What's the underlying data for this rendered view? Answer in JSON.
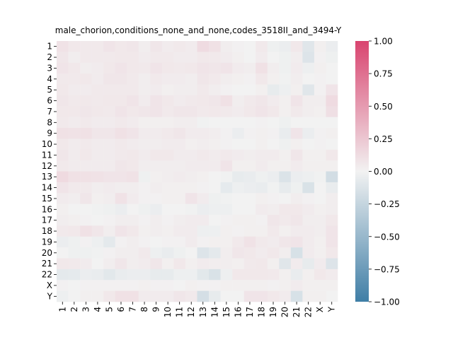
{
  "chart_data": {
    "type": "heatmap",
    "title": "male_chorion,conditions_none_and_none,codes_3518II_and_3494-Y",
    "xlabel": "",
    "ylabel": "",
    "row_labels": [
      "1",
      "2",
      "3",
      "4",
      "5",
      "6",
      "7",
      "8",
      "9",
      "10",
      "11",
      "12",
      "13",
      "14",
      "15",
      "16",
      "17",
      "18",
      "19",
      "20",
      "21",
      "22",
      "X",
      "Y"
    ],
    "col_labels": [
      "1",
      "2",
      "3",
      "4",
      "5",
      "6",
      "7",
      "8",
      "9",
      "10",
      "11",
      "12",
      "13",
      "14",
      "15",
      "16",
      "17",
      "18",
      "19",
      "20",
      "21",
      "22",
      "X",
      "Y"
    ],
    "colorbar": {
      "vmin": -1.0,
      "vmax": 1.0,
      "ticks": [
        "1.00",
        "0.75",
        "0.50",
        "0.25",
        "0.00",
        "−0.25",
        "−0.50",
        "−0.75",
        "−1.00"
      ],
      "low_color": "#3f7ea6",
      "mid_color": "#f2f2f2",
      "high_color": "#d9446f"
    },
    "values": [
      [
        0.09,
        0.06,
        0.05,
        0.05,
        0.08,
        0.06,
        0.07,
        0.03,
        0.07,
        0.04,
        0.05,
        0.04,
        0.13,
        0.1,
        0.03,
        0.01,
        0.0,
        0.05,
        -0.02,
        -0.04,
        0.06,
        -0.1,
        0.02,
        -0.04
      ],
      [
        0.07,
        0.03,
        0.05,
        0.05,
        0.05,
        0.06,
        0.06,
        0.04,
        0.05,
        0.05,
        0.04,
        0.04,
        0.06,
        0.05,
        0.04,
        0.02,
        0.0,
        0.04,
        0.0,
        -0.02,
        0.03,
        -0.12,
        0.01,
        -0.02
      ],
      [
        0.08,
        0.06,
        0.03,
        0.04,
        0.06,
        0.08,
        0.06,
        0.05,
        0.08,
        0.06,
        0.05,
        0.06,
        0.08,
        0.07,
        0.08,
        0.04,
        0.03,
        0.1,
        0.03,
        -0.02,
        0.04,
        -0.03,
        0.02,
        0.0
      ],
      [
        0.05,
        0.05,
        0.06,
        0.04,
        0.07,
        0.07,
        0.05,
        0.03,
        0.05,
        0.04,
        0.04,
        0.03,
        0.07,
        0.05,
        0.03,
        0.02,
        0.01,
        0.06,
        0.02,
        -0.01,
        0.03,
        0.0,
        0.01,
        0.0
      ],
      [
        0.06,
        0.04,
        0.04,
        0.05,
        0.05,
        0.05,
        0.05,
        0.03,
        0.04,
        0.02,
        0.03,
        0.03,
        0.05,
        0.03,
        0.01,
        0.0,
        0.0,
        0.02,
        -0.06,
        -0.03,
        0.02,
        -0.1,
        0.01,
        0.08
      ],
      [
        0.07,
        0.05,
        0.06,
        0.05,
        0.06,
        0.06,
        0.08,
        0.04,
        0.08,
        0.06,
        0.04,
        0.05,
        0.06,
        0.07,
        0.1,
        0.03,
        0.05,
        0.07,
        0.04,
        0.02,
        0.08,
        0.03,
        0.03,
        0.13
      ],
      [
        0.06,
        0.06,
        0.07,
        0.06,
        0.05,
        0.08,
        0.06,
        0.07,
        0.08,
        0.05,
        0.07,
        0.07,
        0.05,
        0.06,
        0.05,
        0.04,
        0.06,
        0.08,
        0.06,
        0.02,
        0.05,
        0.03,
        0.02,
        0.11
      ],
      [
        0.05,
        0.04,
        0.05,
        0.04,
        0.04,
        0.05,
        0.04,
        0.02,
        0.02,
        0.02,
        0.03,
        0.03,
        -0.01,
        0.0,
        0.0,
        0.0,
        0.0,
        0.01,
        0.0,
        -0.02,
        0.0,
        0.0,
        0.0,
        0.0
      ],
      [
        0.1,
        0.09,
        0.1,
        0.07,
        0.07,
        0.1,
        0.08,
        0.04,
        0.04,
        0.05,
        0.07,
        0.04,
        0.04,
        0.03,
        0.01,
        -0.04,
        0.01,
        0.02,
        0.01,
        -0.05,
        0.08,
        -0.04,
        0.01,
        0.02
      ],
      [
        0.06,
        0.04,
        0.05,
        0.04,
        0.04,
        0.05,
        0.04,
        0.03,
        0.03,
        0.04,
        0.04,
        0.02,
        0.03,
        0.02,
        0.01,
        0.0,
        0.0,
        0.02,
        0.0,
        -0.02,
        0.02,
        0.0,
        0.01,
        0.0
      ],
      [
        0.07,
        0.04,
        0.06,
        0.04,
        0.04,
        0.05,
        0.06,
        0.04,
        0.06,
        0.06,
        0.04,
        0.04,
        0.05,
        0.04,
        0.05,
        0.04,
        0.03,
        0.04,
        0.04,
        0.02,
        0.07,
        0.02,
        0.02,
        0.06
      ],
      [
        0.05,
        0.04,
        0.04,
        0.04,
        0.04,
        0.07,
        0.06,
        0.03,
        0.03,
        0.03,
        0.03,
        0.04,
        0.04,
        0.04,
        0.08,
        0.02,
        0.02,
        0.04,
        0.02,
        0.02,
        0.04,
        0.02,
        0.02,
        0.02
      ],
      [
        0.14,
        0.1,
        0.1,
        0.09,
        0.08,
        0.08,
        0.09,
        -0.02,
        0.02,
        0.03,
        0.04,
        0.03,
        0.02,
        0.0,
        -0.01,
        -0.06,
        -0.05,
        -0.02,
        -0.04,
        -0.13,
        -0.04,
        -0.03,
        -0.01,
        -0.18
      ],
      [
        0.08,
        0.05,
        0.05,
        0.03,
        0.04,
        0.03,
        0.03,
        0.01,
        0.03,
        0.02,
        0.02,
        0.02,
        0.01,
        0.0,
        -0.07,
        -0.03,
        -0.04,
        -0.05,
        -0.01,
        -0.06,
        -0.02,
        -0.14,
        0.0,
        -0.05
      ],
      [
        0.04,
        0.03,
        0.07,
        0.02,
        0.03,
        0.09,
        0.04,
        0.01,
        0.01,
        0.02,
        0.02,
        0.08,
        0.04,
        -0.02,
        -0.01,
        0.0,
        0.0,
        0.02,
        0.01,
        0.0,
        0.03,
        0.01,
        0.0,
        0.03
      ],
      [
        0.02,
        0.0,
        0.0,
        -0.01,
        -0.02,
        -0.04,
        0.0,
        -0.02,
        -0.04,
        0.0,
        0.0,
        -0.01,
        -0.04,
        -0.03,
        -0.03,
        0.0,
        0.0,
        0.04,
        0.03,
        0.06,
        0.06,
        0.04,
        0.02,
        0.03
      ],
      [
        0.03,
        0.02,
        0.01,
        0.0,
        0.01,
        0.03,
        0.03,
        0.01,
        0.03,
        0.01,
        0.03,
        0.04,
        0.04,
        0.0,
        0.01,
        0.02,
        0.02,
        0.01,
        0.07,
        0.05,
        0.07,
        0.03,
        0.03,
        0.06
      ],
      [
        0.05,
        0.06,
        0.1,
        0.07,
        0.03,
        0.08,
        0.06,
        0.02,
        0.03,
        0.02,
        0.04,
        0.04,
        -0.03,
        -0.03,
        0.02,
        0.01,
        0.02,
        0.02,
        0.05,
        0.02,
        0.04,
        0.04,
        0.03,
        0.08
      ],
      [
        -0.04,
        -0.02,
        0.01,
        -0.03,
        -0.08,
        0.01,
        0.03,
        0.01,
        0.0,
        0.01,
        0.01,
        0.04,
        0.01,
        0.02,
        0.02,
        0.05,
        0.09,
        0.05,
        0.04,
        0.07,
        0.08,
        0.04,
        0.02,
        0.08
      ],
      [
        0.0,
        -0.02,
        -0.02,
        -0.01,
        0.01,
        0.03,
        0.03,
        0.05,
        -0.03,
        -0.05,
        -0.02,
        0.0,
        -0.12,
        -0.08,
        0.03,
        0.07,
        0.06,
        0.04,
        0.06,
        0.03,
        -0.15,
        0.04,
        0.02,
        0.06
      ],
      [
        0.06,
        0.05,
        0.04,
        0.0,
        0.03,
        0.07,
        0.03,
        0.04,
        0.07,
        0.02,
        0.06,
        0.02,
        0.04,
        0.03,
        0.03,
        0.02,
        0.05,
        0.06,
        0.02,
        -0.1,
        0.04,
        -0.06,
        0.04,
        -0.12
      ],
      [
        -0.08,
        -0.07,
        -0.04,
        -0.05,
        -0.09,
        -0.05,
        -0.04,
        -0.04,
        -0.06,
        -0.06,
        -0.03,
        -0.03,
        -0.09,
        -0.14,
        -0.03,
        0.06,
        0.06,
        0.06,
        0.05,
        0.02,
        -0.05,
        0.02,
        0.06,
        0.04
      ],
      [
        0.01,
        0.0,
        0.01,
        0.01,
        0.01,
        0.01,
        0.01,
        0.02,
        0.01,
        0.01,
        0.0,
        0.02,
        0.01,
        0.01,
        0.02,
        0.02,
        0.02,
        0.02,
        0.01,
        0.02,
        0.04,
        0.02,
        0.02,
        0.02
      ],
      [
        -0.03,
        0.0,
        0.02,
        0.02,
        0.06,
        0.1,
        0.1,
        0.04,
        0.04,
        0.04,
        0.07,
        0.05,
        -0.17,
        -0.06,
        0.0,
        0.0,
        0.08,
        0.08,
        0.06,
        0.04,
        -0.15,
        0.02,
        0.02,
        0.0
      ]
    ]
  }
}
